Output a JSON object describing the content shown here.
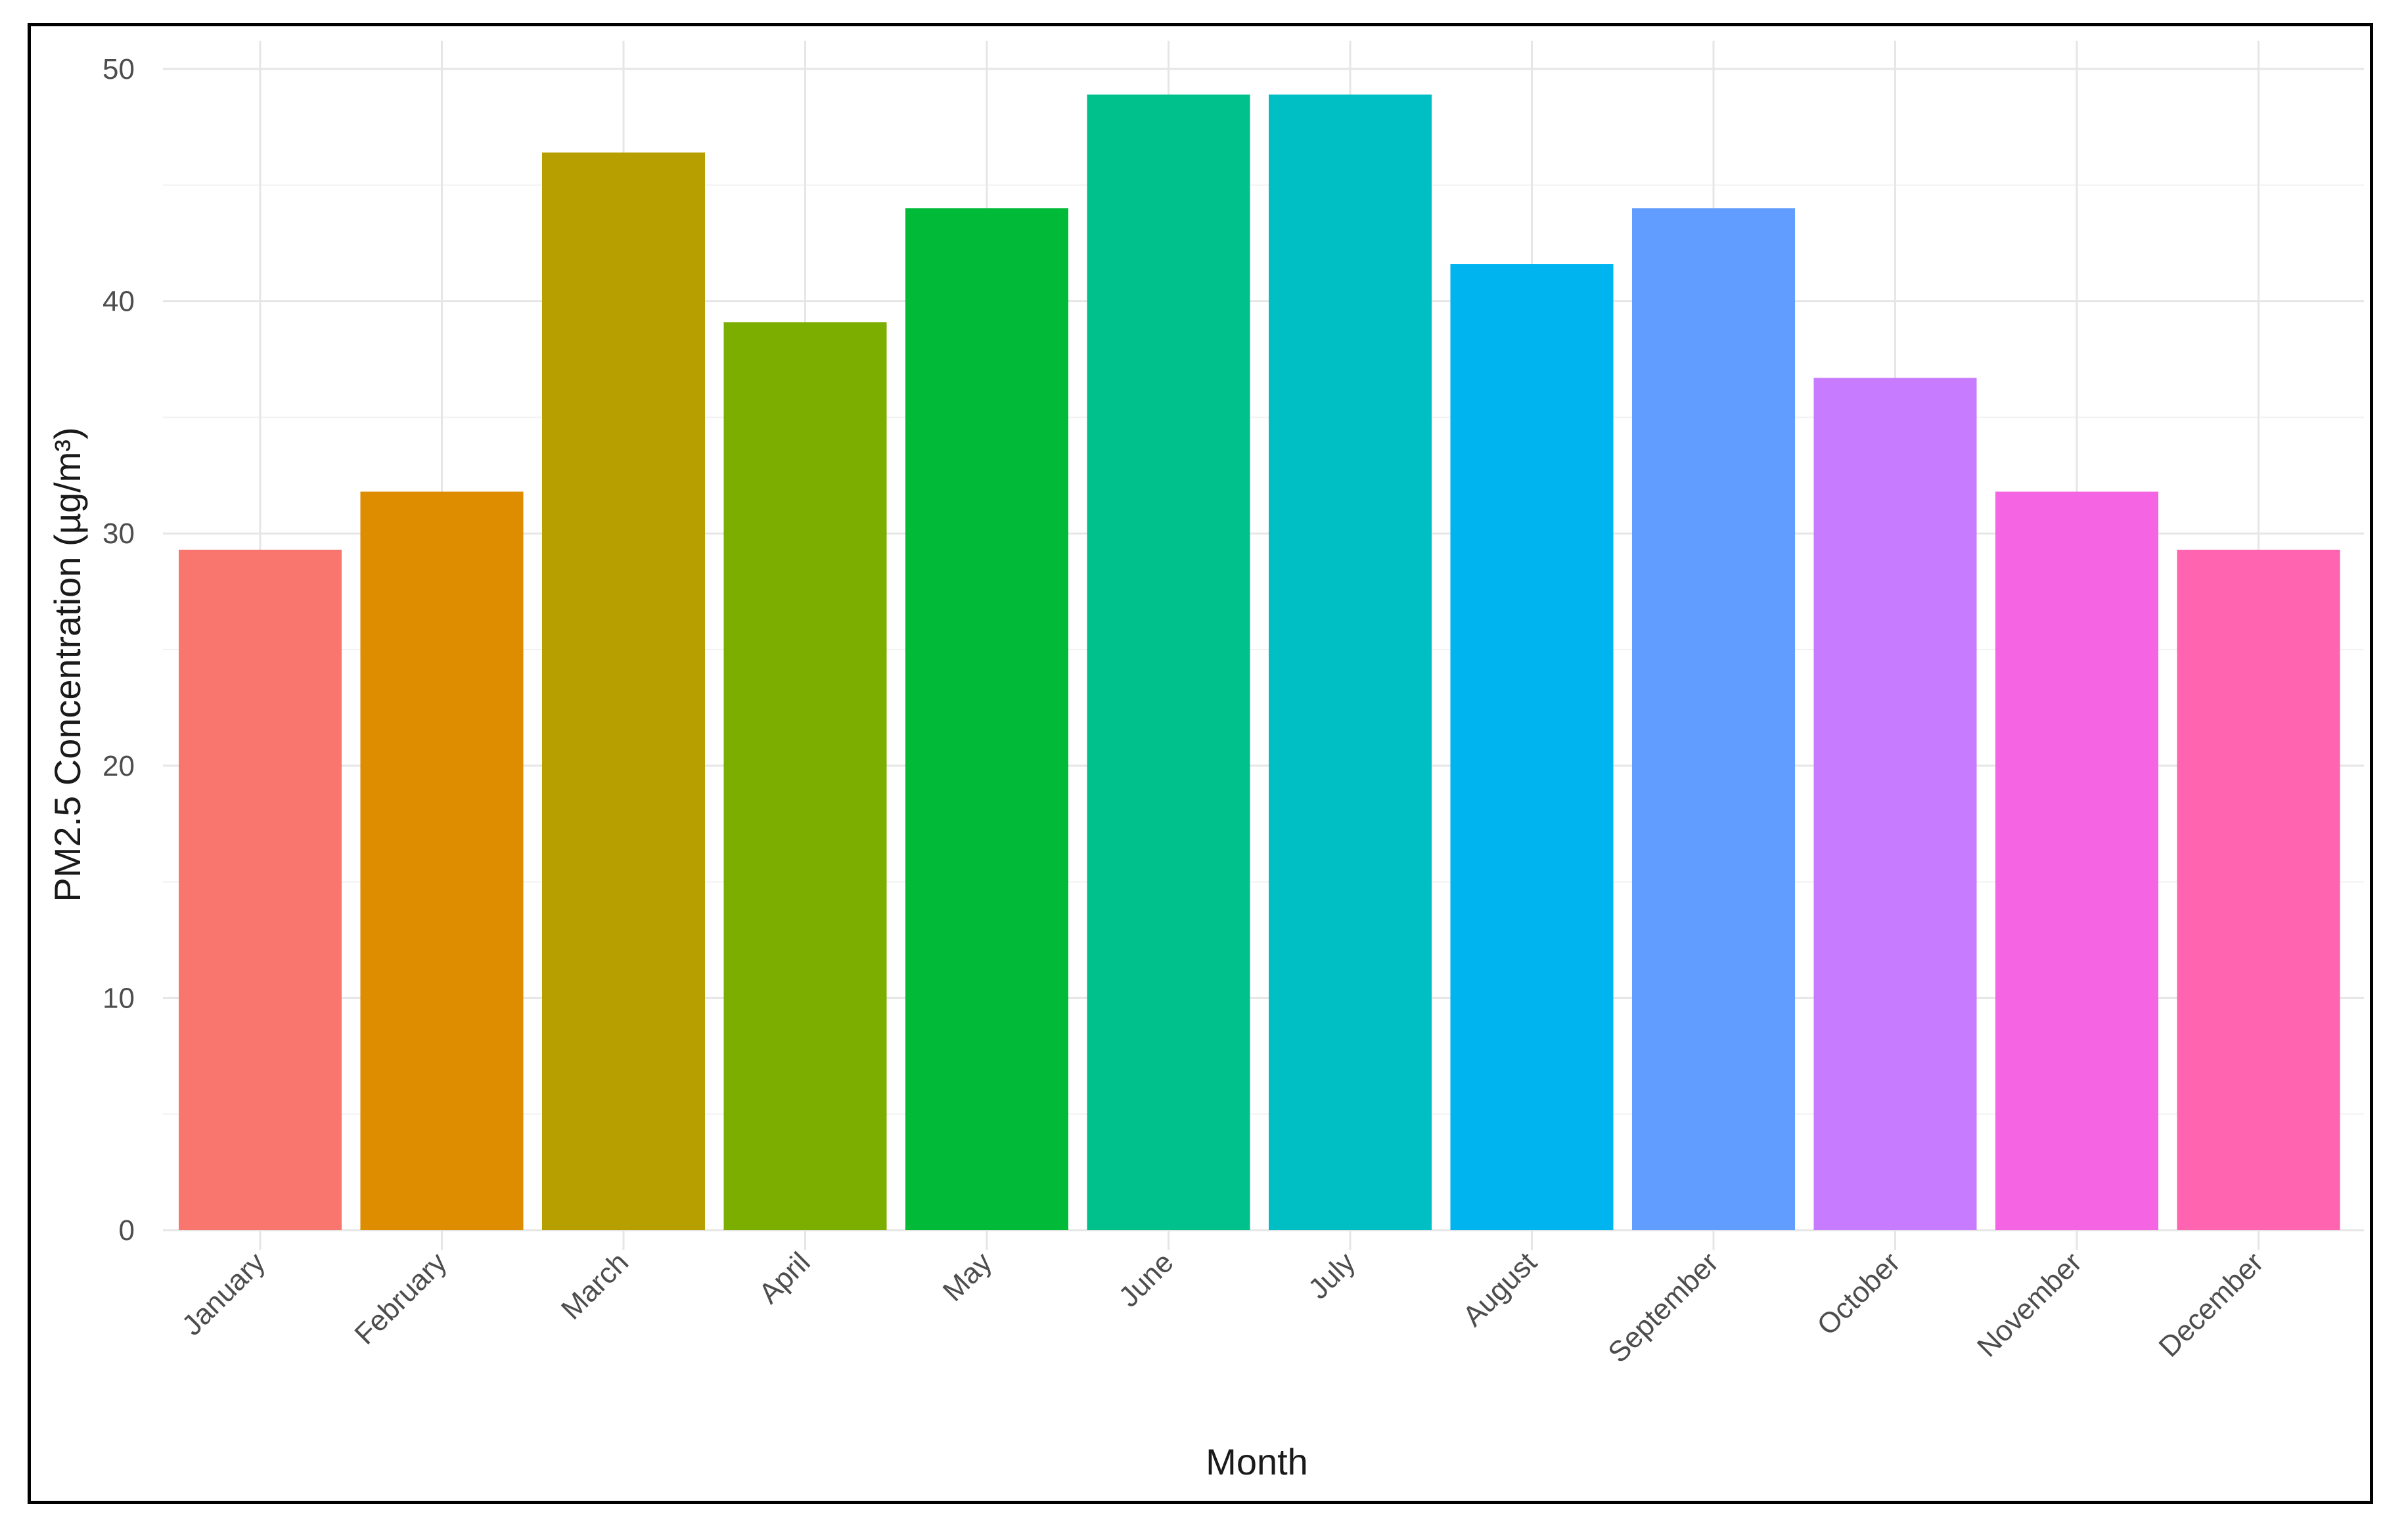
{
  "chart_data": {
    "type": "bar",
    "title": "",
    "xlabel": "Month",
    "ylabel": "PM2.5 Concentration (µg/m³)",
    "ylim": [
      0,
      50
    ],
    "yticks": [
      0,
      10,
      20,
      30,
      40,
      50
    ],
    "ytick_labels": [
      "0",
      "10",
      "20",
      "30",
      "40",
      "50"
    ],
    "grid": true,
    "legend": "none",
    "categories": [
      "January",
      "February",
      "March",
      "April",
      "May",
      "June",
      "July",
      "August",
      "September",
      "October",
      "November",
      "December"
    ],
    "values": [
      29.3,
      31.8,
      46.4,
      39.1,
      44.0,
      48.9,
      48.9,
      41.6,
      44.0,
      36.7,
      31.8,
      29.3
    ],
    "colors": [
      "#F8766D",
      "#DE8C00",
      "#B79F00",
      "#7CAE00",
      "#00BA38",
      "#00C08B",
      "#00BFC4",
      "#00B4F0",
      "#619CFF",
      "#C77CFF",
      "#F564E3",
      "#FF64B0"
    ]
  }
}
